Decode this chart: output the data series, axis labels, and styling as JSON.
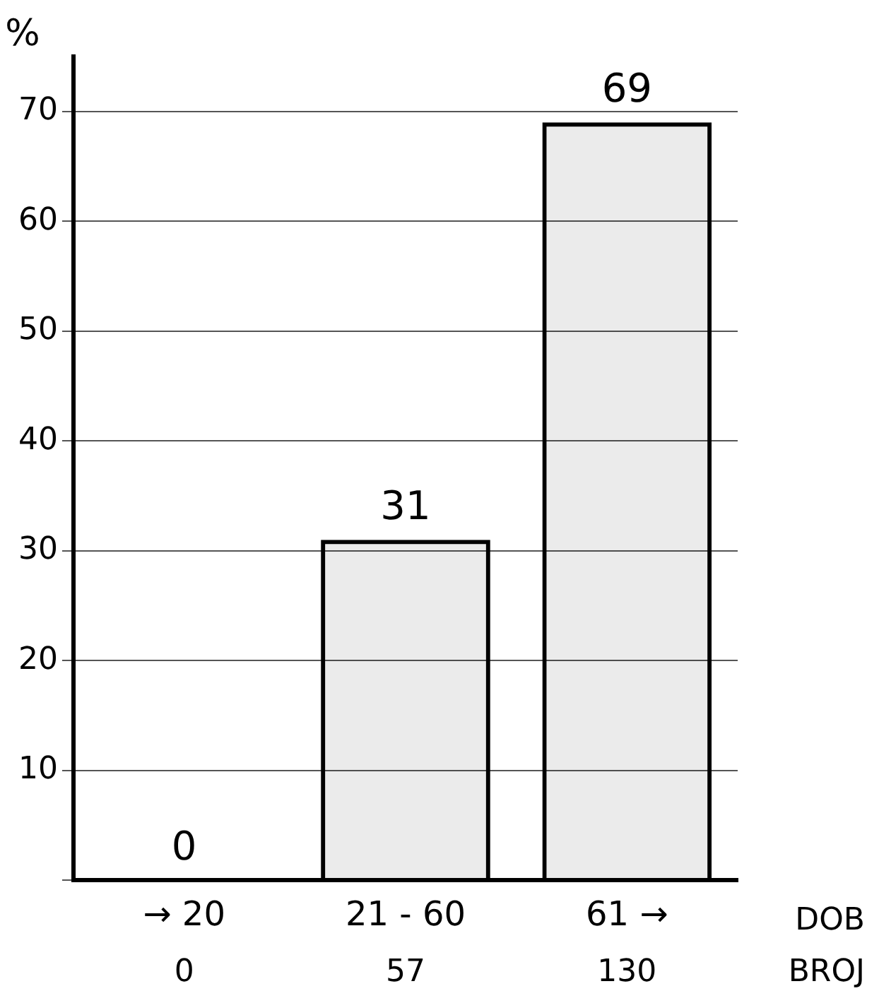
{
  "chart_data": {
    "type": "bar",
    "ylabel": "%",
    "xlabel": "DOB",
    "categories": [
      "→ 20",
      "21 - 60",
      "61 →"
    ],
    "values": [
      0,
      31,
      69
    ],
    "color": "#000000",
    "data_labels": true,
    "ylim": [
      0,
      75
    ],
    "yticks": [
      {
        "value": 0,
        "label": null
      },
      10,
      20,
      30,
      40,
      50,
      60,
      70
    ],
    "grid": "y",
    "legend": false,
    "annotations": [
      "0",
      "57",
      "130",
      "BROJ"
    ]
  }
}
